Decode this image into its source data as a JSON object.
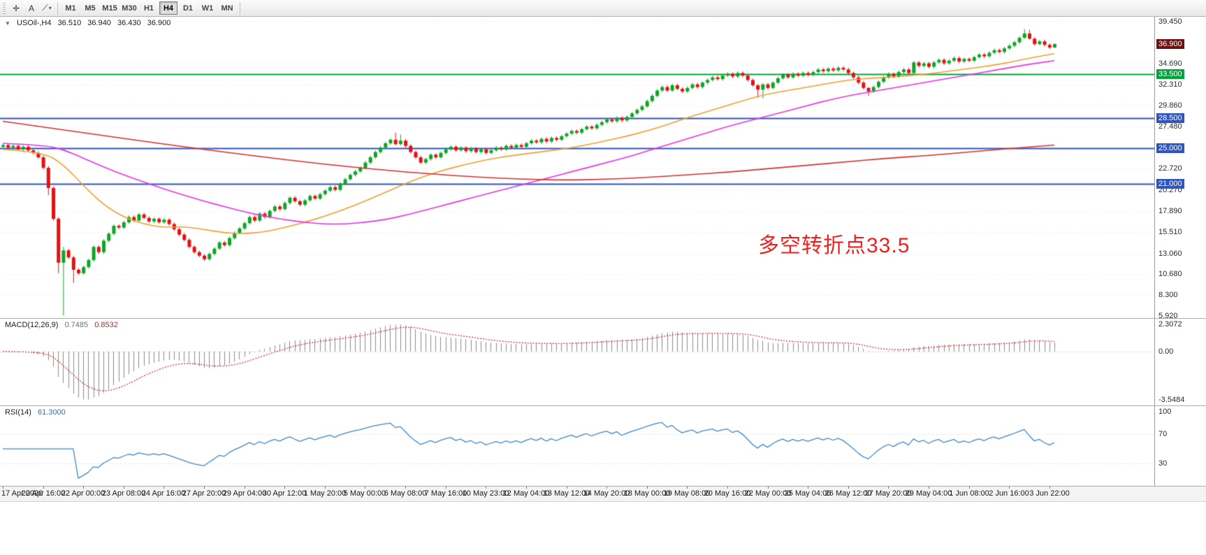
{
  "toolbar": {
    "tools": [
      {
        "id": "crosshair",
        "glyph": "✛"
      },
      {
        "id": "text-label",
        "glyph": "A"
      },
      {
        "id": "draw-tools",
        "glyph": "⟋"
      }
    ],
    "caret": "▾",
    "timeframes": [
      "M1",
      "M5",
      "M15",
      "M30",
      "H1",
      "H4",
      "D1",
      "W1",
      "MN"
    ],
    "active_timeframe": "H4"
  },
  "chart_header": {
    "collapse_glyph": "▼",
    "title": "USOil-,H4",
    "open": "36.510",
    "high": "36.940",
    "low": "36.430",
    "close": "36.900"
  },
  "annotation": {
    "text": "多空转折点33.5",
    "color": "#f21f1f"
  },
  "price_scale": {
    "grid_labels": [
      "39.450",
      "34.690",
      "32.310",
      "29.860",
      "27.480",
      "22.720",
      "20.270",
      "17.890",
      "15.510",
      "13.060",
      "10.680",
      "8.300",
      "5.920"
    ],
    "grid_values": [
      39.45,
      34.69,
      32.31,
      29.86,
      27.48,
      22.72,
      20.27,
      17.89,
      15.51,
      13.06,
      10.68,
      8.3,
      5.92
    ],
    "badges": [
      {
        "text": "36.900",
        "value": 36.9,
        "type": "current-price",
        "bg": "#6e1111"
      },
      {
        "text": "33.500",
        "value": 33.5,
        "type": "level",
        "bg": "#00a63c"
      },
      {
        "text": "28.500",
        "value": 28.5,
        "type": "level",
        "bg": "#2f55c0"
      },
      {
        "text": "25.000",
        "value": 25.0,
        "type": "level",
        "bg": "#2f55c0"
      },
      {
        "text": "21.000",
        "value": 21.0,
        "type": "level",
        "bg": "#2f55c0"
      }
    ]
  },
  "macd_panel": {
    "label": "MACD(12,26,9)",
    "value_main": "0.7485",
    "value_signal": "0.8532",
    "scale_top": "2.3072",
    "scale_zero": "0.00",
    "scale_bottom": "-3.5484",
    "fast": 12,
    "slow": 26,
    "signal": 9,
    "hist_color": "#8c8c8c",
    "signal_color": "#d92121"
  },
  "rsi_panel": {
    "label": "RSI(14)",
    "value": "61.3000",
    "period": 14,
    "line_color": "#3f87c9",
    "scale_labels": [
      "100",
      "70",
      "30"
    ],
    "scale_values": [
      100,
      70,
      30
    ],
    "level_lines": [
      70,
      30
    ]
  },
  "chart_data": {
    "type": "candlestick",
    "symbol": "USOil-",
    "timeframe": "H4",
    "title": "USOil-,H4",
    "y_range": [
      5.7,
      40.0
    ],
    "up_color": "#0fa526",
    "down_color": "#e41111",
    "open_first": 25.2,
    "closes": [
      25.4,
      25.1,
      25.3,
      24.9,
      25.2,
      24.8,
      24.5,
      24.0,
      22.8,
      20.5,
      17.0,
      12.0,
      13.4,
      12.6,
      11.2,
      10.8,
      11.5,
      12.3,
      13.8,
      13.2,
      14.5,
      15.3,
      16.2,
      16.0,
      16.6,
      17.2,
      16.8,
      17.5,
      17.1,
      16.7,
      17.0,
      16.6,
      16.9,
      16.4,
      15.8,
      15.2,
      14.6,
      13.8,
      13.2,
      12.8,
      12.4,
      13.0,
      13.6,
      14.3,
      14.0,
      14.8,
      15.4,
      15.9,
      16.5,
      17.2,
      16.8,
      17.6,
      17.2,
      17.9,
      18.4,
      18.1,
      18.8,
      19.4,
      19.0,
      18.6,
      19.1,
      19.6,
      19.3,
      19.8,
      20.2,
      20.6,
      20.3,
      21.0,
      21.5,
      22.0,
      22.4,
      22.8,
      23.4,
      24.0,
      24.6,
      25.1,
      25.6,
      26.0,
      25.5,
      25.9,
      25.3,
      24.6,
      24.0,
      23.4,
      23.8,
      24.3,
      24.0,
      24.5,
      24.9,
      25.2,
      24.8,
      25.1,
      24.7,
      25.0,
      24.6,
      24.9,
      24.5,
      24.8,
      25.1,
      24.9,
      25.3,
      25.1,
      25.4,
      25.2,
      25.6,
      25.9,
      25.7,
      26.1,
      25.8,
      26.2,
      26.0,
      26.4,
      26.7,
      27.0,
      26.8,
      27.2,
      27.5,
      27.3,
      27.7,
      28.0,
      28.3,
      28.1,
      28.5,
      28.2,
      28.6,
      29.0,
      29.4,
      29.8,
      30.4,
      31.0,
      31.6,
      32.0,
      31.6,
      32.2,
      31.8,
      31.5,
      31.9,
      32.3,
      32.0,
      32.5,
      32.8,
      33.1,
      32.9,
      33.3,
      33.5,
      33.2,
      33.6,
      33.3,
      32.8,
      32.2,
      31.7,
      32.3,
      31.9,
      32.5,
      33.0,
      33.4,
      33.1,
      33.5,
      33.3,
      33.6,
      33.4,
      33.7,
      34.0,
      33.8,
      34.1,
      33.9,
      34.2,
      34.0,
      33.6,
      33.1,
      32.5,
      31.9,
      31.5,
      32.0,
      32.6,
      33.1,
      33.5,
      33.2,
      33.7,
      34.0,
      33.6,
      34.8,
      34.4,
      34.7,
      34.3,
      34.8,
      35.1,
      34.7,
      35.0,
      35.3,
      34.9,
      35.2,
      35.0,
      35.4,
      35.7,
      35.5,
      35.9,
      36.2,
      36.0,
      36.4,
      36.7,
      37.1,
      37.6,
      38.1,
      37.5,
      36.9,
      37.2,
      36.8,
      36.5,
      36.9
    ],
    "default_wick": 0.18,
    "wick_overrides": {
      "9": [
        0.2,
        0.8
      ],
      "11": [
        0.2,
        1.2
      ],
      "12": [
        0.4,
        6.0
      ],
      "14": [
        0.2,
        1.5
      ],
      "78": [
        0.8,
        0.15
      ],
      "79": [
        0.7,
        0.15
      ],
      "150": [
        0.15,
        0.9
      ],
      "151": [
        0.15,
        1.0
      ],
      "172": [
        0.1,
        0.5
      ],
      "203": [
        0.5,
        0.1
      ],
      "204": [
        0.4,
        0.1
      ],
      "209": [
        0.04,
        0.07
      ]
    },
    "hlines": [
      {
        "value": 33.5,
        "color": "#00a63c",
        "width": 2
      },
      {
        "value": 28.5,
        "color": "#2f55c0",
        "width": 2
      },
      {
        "value": 25.0,
        "color": "#2f55c0",
        "width": 2
      },
      {
        "value": 21.0,
        "color": "#2f55c0",
        "width": 2
      }
    ],
    "current_price": 36.9,
    "ma_lines": [
      {
        "name": "ma-fast-orange",
        "color": "#f0a030",
        "points": [
          [
            0,
            24.9
          ],
          [
            8,
            24.6
          ],
          [
            12,
            23.2
          ],
          [
            16,
            20.8
          ],
          [
            20,
            18.6
          ],
          [
            24,
            17.2
          ],
          [
            28,
            16.4
          ],
          [
            32,
            16.0
          ],
          [
            36,
            16.1
          ],
          [
            40,
            15.8
          ],
          [
            44,
            15.4
          ],
          [
            48,
            15.3
          ],
          [
            52,
            15.5
          ],
          [
            56,
            16.0
          ],
          [
            60,
            16.6
          ],
          [
            64,
            17.3
          ],
          [
            68,
            18.1
          ],
          [
            72,
            19.0
          ],
          [
            76,
            20.0
          ],
          [
            80,
            21.0
          ],
          [
            84,
            21.9
          ],
          [
            88,
            22.6
          ],
          [
            92,
            23.2
          ],
          [
            96,
            23.7
          ],
          [
            100,
            24.1
          ],
          [
            104,
            24.4
          ],
          [
            108,
            24.7
          ],
          [
            112,
            25.0
          ],
          [
            116,
            25.4
          ],
          [
            120,
            25.9
          ],
          [
            124,
            26.4
          ],
          [
            128,
            27.0
          ],
          [
            132,
            27.7
          ],
          [
            136,
            28.5
          ],
          [
            140,
            29.2
          ],
          [
            144,
            29.9
          ],
          [
            148,
            30.6
          ],
          [
            152,
            31.2
          ],
          [
            156,
            31.6
          ],
          [
            160,
            32.0
          ],
          [
            164,
            32.4
          ],
          [
            168,
            32.8
          ],
          [
            172,
            33.0
          ],
          [
            176,
            33.1
          ],
          [
            180,
            33.3
          ],
          [
            184,
            33.5
          ],
          [
            188,
            33.8
          ],
          [
            192,
            34.1
          ],
          [
            196,
            34.4
          ],
          [
            200,
            34.8
          ],
          [
            204,
            35.3
          ],
          [
            209,
            35.8
          ]
        ]
      },
      {
        "name": "ma-mid-magenta",
        "color": "#e832e8",
        "points": [
          [
            0,
            25.6
          ],
          [
            8,
            25.4
          ],
          [
            12,
            24.9
          ],
          [
            16,
            23.9
          ],
          [
            20,
            22.9
          ],
          [
            24,
            22.0
          ],
          [
            28,
            21.2
          ],
          [
            32,
            20.4
          ],
          [
            36,
            19.7
          ],
          [
            40,
            19.0
          ],
          [
            44,
            18.4
          ],
          [
            48,
            17.8
          ],
          [
            52,
            17.3
          ],
          [
            56,
            16.9
          ],
          [
            60,
            16.6
          ],
          [
            64,
            16.4
          ],
          [
            68,
            16.4
          ],
          [
            72,
            16.6
          ],
          [
            76,
            16.9
          ],
          [
            80,
            17.4
          ],
          [
            84,
            18.0
          ],
          [
            88,
            18.6
          ],
          [
            92,
            19.2
          ],
          [
            96,
            19.8
          ],
          [
            100,
            20.4
          ],
          [
            104,
            21.0
          ],
          [
            108,
            21.6
          ],
          [
            112,
            22.2
          ],
          [
            116,
            22.8
          ],
          [
            120,
            23.4
          ],
          [
            124,
            24.0
          ],
          [
            128,
            24.7
          ],
          [
            132,
            25.4
          ],
          [
            136,
            26.1
          ],
          [
            140,
            26.8
          ],
          [
            144,
            27.5
          ],
          [
            148,
            28.1
          ],
          [
            152,
            28.7
          ],
          [
            156,
            29.3
          ],
          [
            160,
            29.9
          ],
          [
            164,
            30.5
          ],
          [
            168,
            31.0
          ],
          [
            172,
            31.4
          ],
          [
            176,
            31.8
          ],
          [
            180,
            32.2
          ],
          [
            184,
            32.6
          ],
          [
            188,
            33.0
          ],
          [
            192,
            33.4
          ],
          [
            196,
            33.8
          ],
          [
            200,
            34.2
          ],
          [
            204,
            34.6
          ],
          [
            209,
            35.0
          ]
        ]
      },
      {
        "name": "ma-slow-red",
        "color": "#d93030",
        "points": [
          [
            0,
            28.1
          ],
          [
            16,
            26.8
          ],
          [
            32,
            25.5
          ],
          [
            48,
            24.3
          ],
          [
            64,
            23.2
          ],
          [
            80,
            22.3
          ],
          [
            96,
            21.7
          ],
          [
            104,
            21.5
          ],
          [
            112,
            21.4
          ],
          [
            120,
            21.5
          ],
          [
            128,
            21.7
          ],
          [
            136,
            22.0
          ],
          [
            144,
            22.3
          ],
          [
            152,
            22.7
          ],
          [
            160,
            23.1
          ],
          [
            168,
            23.5
          ],
          [
            176,
            23.9
          ],
          [
            184,
            24.2
          ],
          [
            192,
            24.6
          ],
          [
            200,
            25.0
          ],
          [
            209,
            25.4
          ]
        ]
      }
    ],
    "x_labels": [
      {
        "bar": 0,
        "text": "17 Apr 2020"
      },
      {
        "bar": 8,
        "text": "20 Apr 16:00"
      },
      {
        "bar": 16,
        "text": "22 Apr 00:00"
      },
      {
        "bar": 24,
        "text": "23 Apr 08:00"
      },
      {
        "bar": 32,
        "text": "24 Apr 16:00"
      },
      {
        "bar": 40,
        "text": "27 Apr 20:00"
      },
      {
        "bar": 48,
        "text": "29 Apr 04:00"
      },
      {
        "bar": 56,
        "text": "30 Apr 12:00"
      },
      {
        "bar": 64,
        "text": "1 May 20:00"
      },
      {
        "bar": 72,
        "text": "5 May 00:00"
      },
      {
        "bar": 80,
        "text": "6 May 08:00"
      },
      {
        "bar": 88,
        "text": "7 May 16:00"
      },
      {
        "bar": 96,
        "text": "10 May 23:00"
      },
      {
        "bar": 104,
        "text": "12 May 04:00"
      },
      {
        "bar": 112,
        "text": "13 May 12:00"
      },
      {
        "bar": 120,
        "text": "14 May 20:00"
      },
      {
        "bar": 128,
        "text": "18 May 00:00"
      },
      {
        "bar": 136,
        "text": "19 May 08:00"
      },
      {
        "bar": 144,
        "text": "20 May 16:00"
      },
      {
        "bar": 152,
        "text": "22 May 00:00"
      },
      {
        "bar": 160,
        "text": "25 May 04:00"
      },
      {
        "bar": 168,
        "text": "26 May 12:00"
      },
      {
        "bar": 176,
        "text": "27 May 20:00"
      },
      {
        "bar": 184,
        "text": "29 May 04:00"
      },
      {
        "bar": 192,
        "text": "1 Jun 08:00"
      },
      {
        "bar": 200,
        "text": "2 Jun 16:00"
      },
      {
        "bar": 208,
        "text": "3 Jun 22:00"
      }
    ]
  }
}
